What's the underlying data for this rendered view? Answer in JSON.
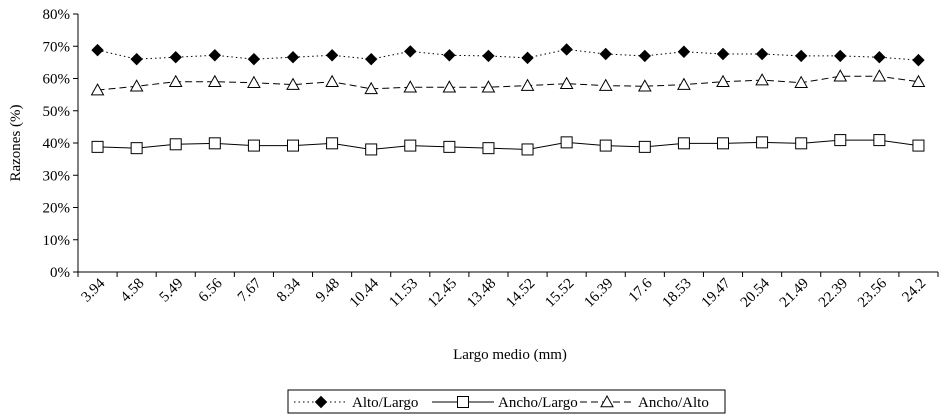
{
  "chart_data": {
    "type": "line",
    "xlabel": "Largo medio (mm)",
    "ylabel": "Razones (%)",
    "ylim": [
      0,
      80
    ],
    "y_ticks": [
      0,
      10,
      20,
      30,
      40,
      50,
      60,
      70,
      80
    ],
    "y_tick_suffix": "%",
    "grid": false,
    "legend_position": "bottom",
    "categories": [
      "3.94",
      "4.58",
      "5.49",
      "6.56",
      "7.67",
      "8.34",
      "9.48",
      "10.44",
      "11.53",
      "12.45",
      "13.48",
      "14.52",
      "15.52",
      "16.39",
      "17.6",
      "18.53",
      "19.47",
      "20.54",
      "21.49",
      "22.39",
      "23.56",
      "24.2"
    ],
    "series": [
      {
        "name": "Alto/Largo",
        "marker": "diamond-filled",
        "line_style": "dotted",
        "color": "#000000",
        "values": [
          68.8,
          66.0,
          66.6,
          67.2,
          66.0,
          66.6,
          67.2,
          66.0,
          68.4,
          67.2,
          67.0,
          66.4,
          69.0,
          67.6,
          67.0,
          68.3,
          67.6,
          67.6,
          67.0,
          67.0,
          66.6,
          65.7
        ]
      },
      {
        "name": "Ancho/Largo",
        "marker": "square-open",
        "line_style": "solid",
        "color": "#000000",
        "values": [
          38.8,
          38.4,
          39.6,
          39.9,
          39.2,
          39.2,
          39.9,
          38.0,
          39.2,
          38.8,
          38.4,
          38.0,
          40.2,
          39.2,
          38.8,
          39.9,
          39.9,
          40.2,
          39.9,
          40.9,
          40.9,
          39.2
        ]
      },
      {
        "name": "Ancho/Alto",
        "marker": "triangle-open",
        "line_style": "dashed",
        "color": "#000000",
        "values": [
          56.4,
          57.6,
          59.0,
          59.0,
          58.7,
          58.1,
          59.0,
          56.8,
          57.3,
          57.3,
          57.3,
          57.8,
          58.4,
          57.8,
          57.6,
          58.1,
          59.0,
          59.5,
          58.7,
          60.7,
          60.7,
          59.0
        ]
      }
    ]
  }
}
